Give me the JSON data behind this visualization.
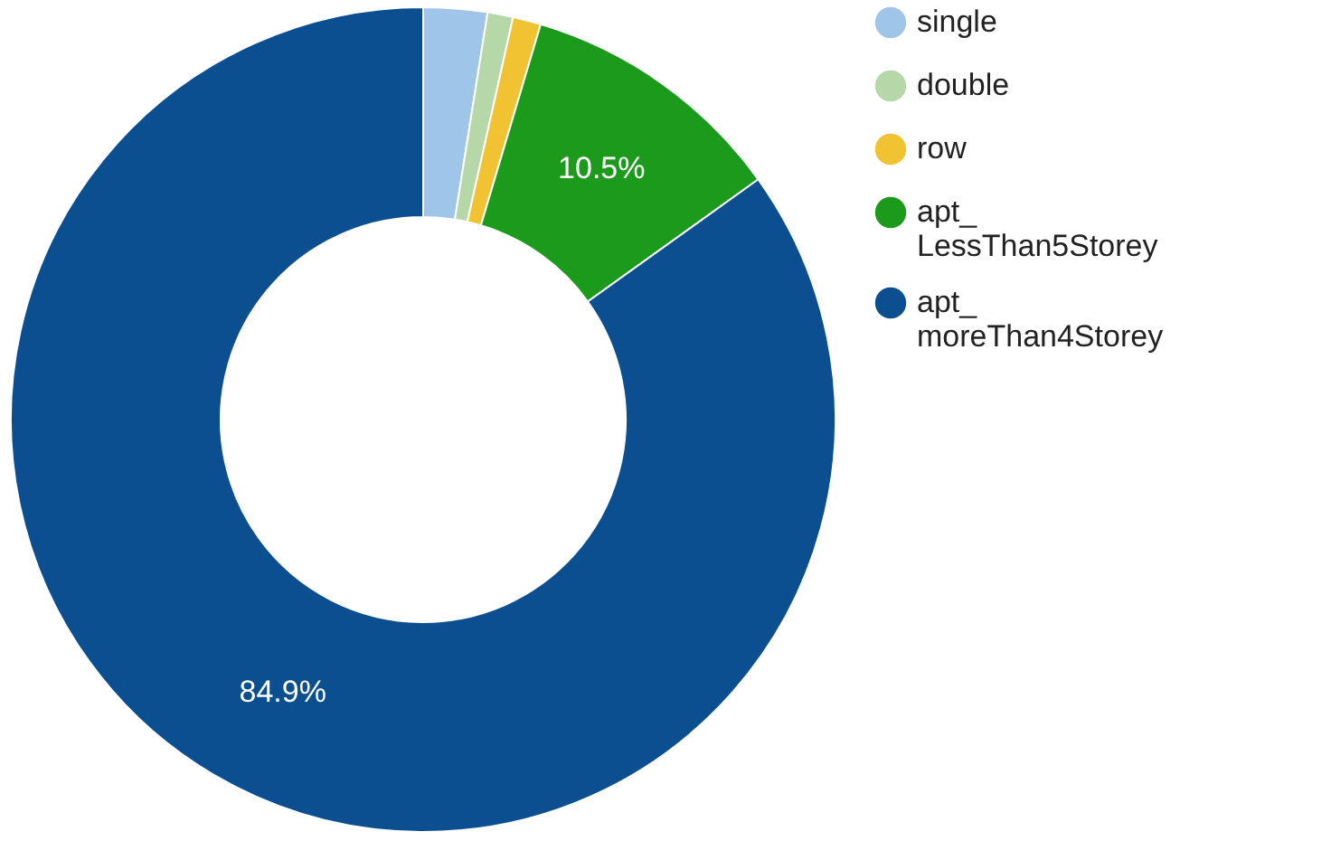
{
  "chart_data": {
    "type": "donut",
    "categories": [
      "single",
      "double",
      "row",
      "apt_LessThan5Storey",
      "apt_moreThan4Storey"
    ],
    "values": [
      2.5,
      1.0,
      1.1,
      10.5,
      84.9
    ],
    "colors": [
      "#9fc5e8",
      "#b6d7a8",
      "#f1c232",
      "#1c9a1c",
      "#0b4f91"
    ],
    "value_labels": [
      null,
      null,
      null,
      "10.5%",
      "84.9%"
    ],
    "legend": "right"
  }
}
